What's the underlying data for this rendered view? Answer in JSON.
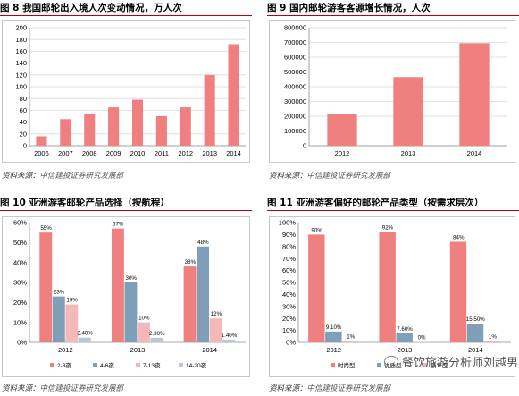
{
  "panels": {
    "p8": {
      "title": "图 8  我国邮轮出入境人次变动情况，万人次",
      "source": "资料来源：",
      "source_pub": "中信建投证券研究发展部"
    },
    "p9": {
      "title": "图 9  国内邮轮游客客源增长情况，人次",
      "source": "资料来源：",
      "source_pub": "中信建投证券研究发展部"
    },
    "p10": {
      "title": "图 10  亚洲游客邮轮产品选择（按航程）",
      "source": "资料来源：",
      "source_pub": "中信建投证券研究发展部"
    },
    "p11": {
      "title": "图 11  亚洲游客偏好的邮轮产品类型（按需求层次）",
      "source": "资料来源：",
      "source_pub": "中信建投证券研究发展部"
    }
  },
  "watermark": "餐饮旅游分析师刘越男",
  "colors": {
    "bar": "#f08080",
    "s2": "#7f9fb8",
    "s3": "#f4b8b8",
    "s4": "#b7c9d9",
    "title_rule": "#c00000"
  },
  "chart_data": [
    {
      "id": "c8",
      "type": "bar",
      "categories": [
        "2006",
        "2007",
        "2008",
        "2009",
        "2010",
        "2011",
        "2012",
        "2013",
        "2014"
      ],
      "series": [
        {
          "values": [
            16,
            45,
            54,
            65,
            78,
            50,
            65,
            120,
            172
          ]
        }
      ],
      "ylim": [
        0,
        200
      ],
      "yticks": [
        0,
        20,
        40,
        60,
        80,
        100,
        120,
        140,
        160,
        180,
        200
      ],
      "grid": true,
      "legend": "none"
    },
    {
      "id": "c9",
      "type": "bar",
      "categories": [
        "2012",
        "2013",
        "2014"
      ],
      "series": [
        {
          "values": [
            215000,
            465000,
            695000
          ]
        }
      ],
      "ylim": [
        0,
        800000
      ],
      "yticks": [
        0,
        100000,
        200000,
        300000,
        400000,
        500000,
        600000,
        700000,
        800000
      ],
      "grid": true,
      "legend": "none"
    },
    {
      "id": "c10",
      "type": "bar",
      "categories": [
        "2012",
        "2013",
        "2014"
      ],
      "series": [
        {
          "name": "2-3夜",
          "values": [
            55,
            57,
            38
          ],
          "labels": [
            "55%",
            "57%",
            "38%"
          ]
        },
        {
          "name": "4-6夜",
          "values": [
            23,
            30,
            48
          ],
          "labels": [
            "23%",
            "30%",
            "48%"
          ]
        },
        {
          "name": "7-13夜",
          "values": [
            19,
            10,
            12
          ],
          "labels": [
            "19%",
            "10%",
            "12%"
          ]
        },
        {
          "name": "14-20夜",
          "values": [
            2.4,
            2.3,
            1.4
          ],
          "labels": [
            "2.40%",
            "2.30%",
            "1.40%"
          ]
        }
      ],
      "ylim": [
        0,
        60
      ],
      "yticks": [
        "0%",
        "10%",
        "20%",
        "30%",
        "40%",
        "50%",
        "60%"
      ],
      "grid": false,
      "legend": "bottom"
    },
    {
      "id": "c11",
      "type": "bar",
      "categories": [
        "2012",
        "2013",
        "2014"
      ],
      "series": [
        {
          "name": "时尚型",
          "values": [
            90,
            92,
            84
          ],
          "labels": [
            "90%",
            "92%",
            "84%"
          ]
        },
        {
          "name": "优质型",
          "values": [
            9.1,
            7.6,
            15.5
          ],
          "labels": [
            "9.10%",
            "7.60%",
            "15.50%"
          ]
        },
        {
          "name": "豪华型",
          "values": [
            1,
            0,
            1
          ],
          "labels": [
            "1%",
            "0%",
            "1%"
          ]
        }
      ],
      "ylim": [
        0,
        100
      ],
      "yticks": [
        "0%",
        "10%",
        "20%",
        "30%",
        "40%",
        "50%",
        "60%",
        "70%",
        "80%",
        "90%",
        "100%"
      ],
      "grid": false,
      "legend": "bottom"
    }
  ]
}
